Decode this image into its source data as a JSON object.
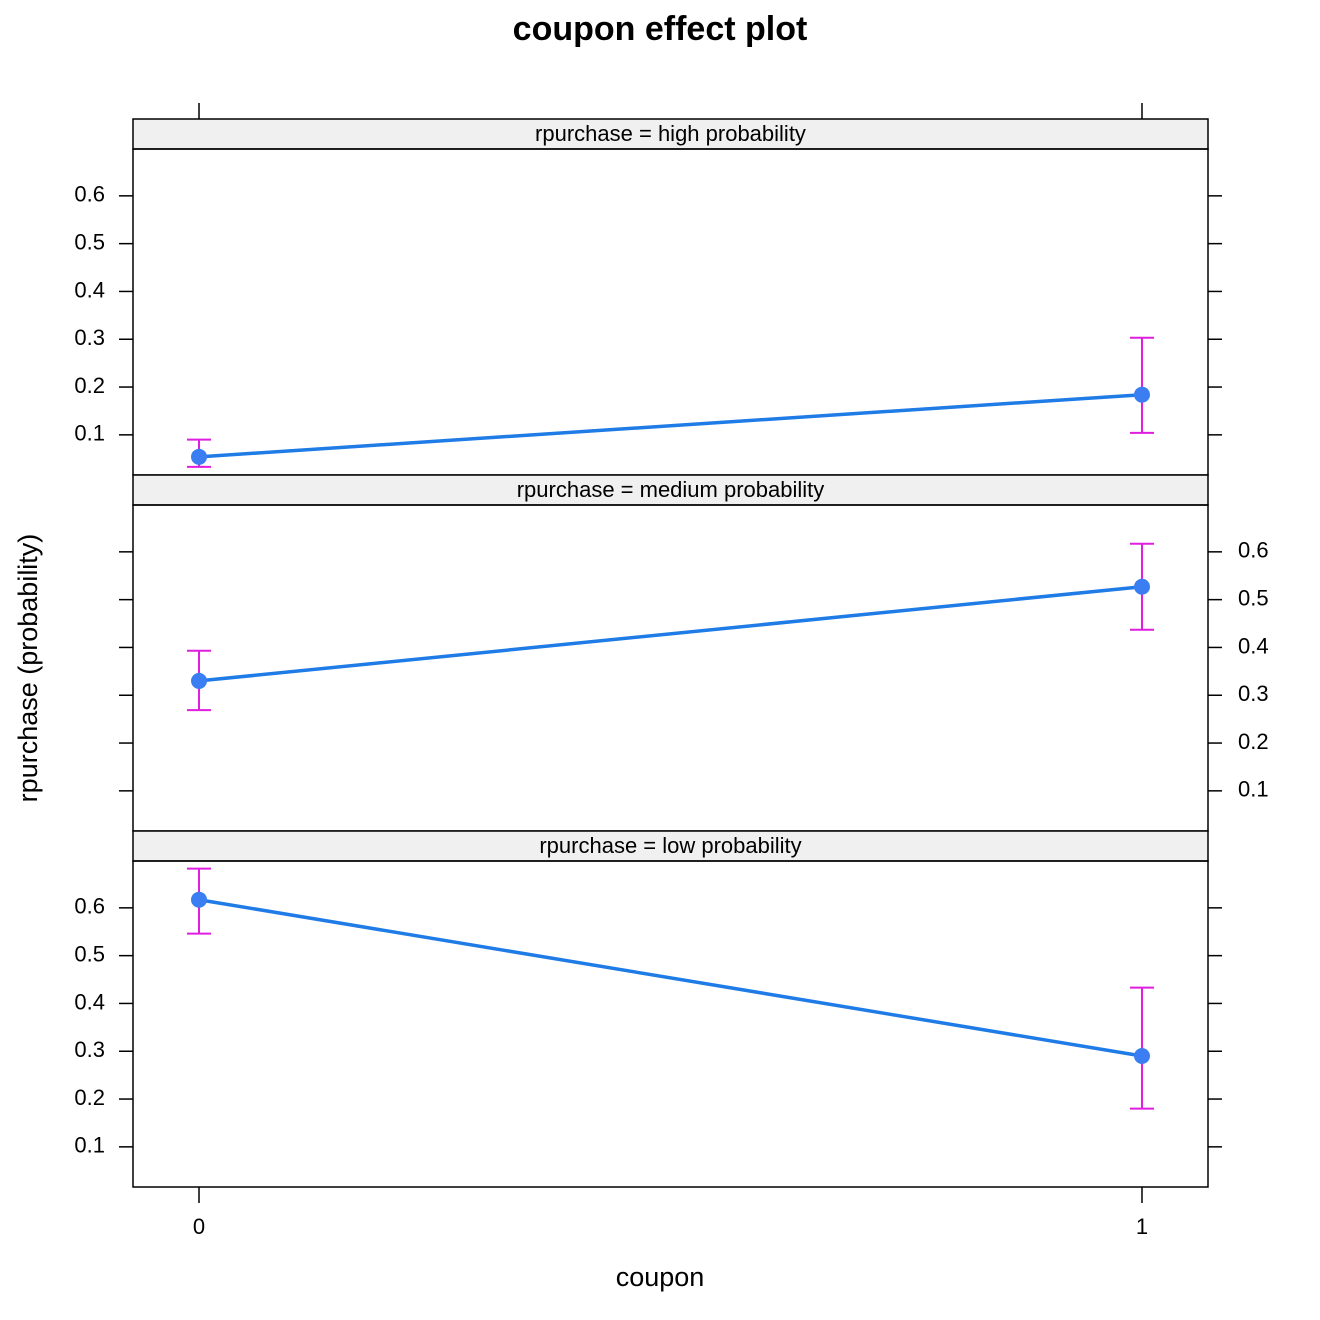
{
  "chart_data": {
    "type": "line",
    "title": "coupon effect plot",
    "x_label": "coupon",
    "y_label": "rpurchase (probability)",
    "x": [
      0,
      1
    ],
    "xlim": [
      -0.07,
      1.07
    ],
    "xticks": [
      0,
      1
    ],
    "ylim": [
      0.016,
      0.698
    ],
    "yticks": [
      0.1,
      0.2,
      0.3,
      0.4,
      0.5,
      0.6
    ],
    "line_color": "#1f7be6",
    "point_color": "#3a7ef2",
    "error_color": "#e01ee0",
    "strip_color": "#f0f0f0",
    "panels": [
      {
        "strip": "rpurchase = high probability",
        "ytick_side": "left",
        "values": [
          0.054,
          0.184
        ],
        "lower": [
          0.033,
          0.104
        ],
        "upper": [
          0.09,
          0.303
        ]
      },
      {
        "strip": "rpurchase = medium probability",
        "ytick_side": "right",
        "values": [
          0.33,
          0.527
        ],
        "lower": [
          0.269,
          0.437
        ],
        "upper": [
          0.393,
          0.617
        ]
      },
      {
        "strip": "rpurchase = low probability",
        "ytick_side": "left",
        "values": [
          0.617,
          0.29
        ],
        "lower": [
          0.546,
          0.18
        ],
        "upper": [
          0.682,
          0.433
        ]
      }
    ]
  }
}
